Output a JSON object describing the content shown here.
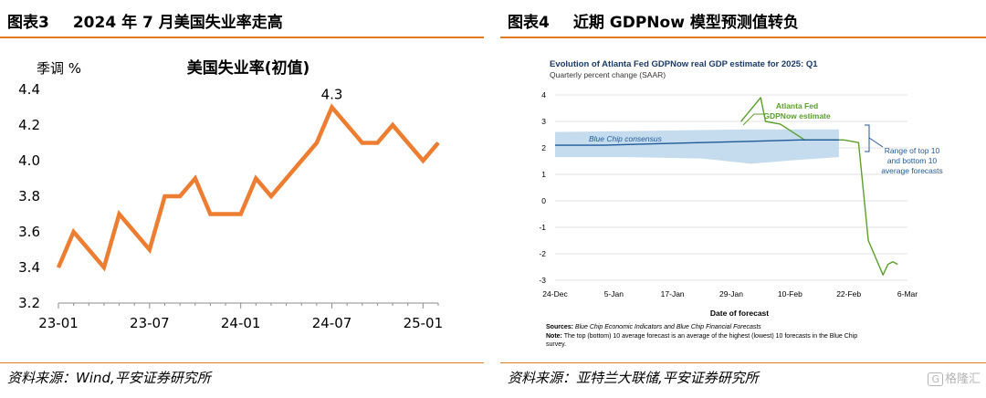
{
  "left": {
    "figure_label": "图表3",
    "figure_title": "2024 年 7 月美国失业率走高",
    "source": "资料来源：Wind,平安证券研究所"
  },
  "right": {
    "figure_label": "图表4",
    "figure_title": "近期 GDPNow 模型预测值转负",
    "source": "资料来源：亚特兰大联储,平安证券研究所"
  },
  "watermark": {
    "box": "G",
    "text": "格隆汇"
  },
  "chart_data": [
    {
      "type": "line",
      "title": "美国失业率(初值)",
      "ylabel": "季调 %",
      "xlabel": "",
      "ylim": [
        3.2,
        4.4
      ],
      "yticks": [
        "3.2",
        "3.4",
        "3.6",
        "3.8",
        "4.0",
        "4.2",
        "4.4"
      ],
      "xticks": [
        "23-01",
        "23-07",
        "24-01",
        "24-07",
        "25-01"
      ],
      "x": [
        "23-01",
        "23-02",
        "23-03",
        "23-04",
        "23-05",
        "23-06",
        "23-07",
        "23-08",
        "23-09",
        "23-10",
        "23-11",
        "23-12",
        "24-01",
        "24-02",
        "24-03",
        "24-04",
        "24-05",
        "24-06",
        "24-07",
        "24-08",
        "24-09",
        "24-10",
        "24-11",
        "24-12",
        "25-01",
        "25-02"
      ],
      "series": [
        {
          "values": [
            3.4,
            3.6,
            3.5,
            3.4,
            3.7,
            3.6,
            3.5,
            3.8,
            3.8,
            3.9,
            3.7,
            3.7,
            3.7,
            3.9,
            3.8,
            3.9,
            4.0,
            4.1,
            4.3,
            4.2,
            4.1,
            4.1,
            4.2,
            4.1,
            4.0,
            4.1
          ],
          "color": "#ed7d31"
        }
      ],
      "annotations": [
        {
          "x": "24-07",
          "text": "4.3"
        }
      ],
      "grid": false,
      "legend": "none"
    },
    {
      "type": "line",
      "title": "Evolution of Atlanta Fed GDPNow real GDP estimate for 2025: Q1",
      "subtitle": "Quarterly percent change (SAAR)",
      "xlabel": "Date of forecast",
      "ylabel": "",
      "ylim": [
        -3,
        4
      ],
      "yticks": [
        "-3",
        "-2",
        "-1",
        "0",
        "1",
        "2",
        "3",
        "4"
      ],
      "xticks": [
        "24-Dec",
        "5-Jan",
        "17-Jan",
        "29-Jan",
        "10-Feb",
        "22-Feb",
        "6-Mar"
      ],
      "x_domain_days": [
        0,
        72
      ],
      "series": [
        {
          "name": "Atlanta Fed GDPNow estimate",
          "color": "#5aa02c",
          "points": [
            [
              38,
              3.0
            ],
            [
              42,
              3.9
            ],
            [
              43,
              3.0
            ],
            [
              46,
              2.9
            ],
            [
              51,
              2.3
            ],
            [
              55,
              2.3
            ],
            [
              57,
              2.3
            ],
            [
              58,
              2.3
            ],
            [
              59,
              2.3
            ],
            [
              62,
              2.2
            ],
            [
              64,
              -1.5
            ],
            [
              67,
              -2.8
            ],
            [
              68,
              -2.4
            ],
            [
              69,
              -2.3
            ],
            [
              70,
              -2.4
            ]
          ]
        },
        {
          "name": "Blue Chip consensus",
          "color": "#1f5a99",
          "points": [
            [
              0,
              2.1
            ],
            [
              10,
              2.1
            ],
            [
              20,
              2.15
            ],
            [
              30,
              2.2
            ],
            [
              40,
              2.25
            ],
            [
              50,
              2.3
            ],
            [
              58,
              2.3
            ]
          ]
        }
      ],
      "band": {
        "name": "Range of top 10 and bottom 10 average forecasts",
        "color": "#c5dcee",
        "upper": [
          [
            0,
            2.6
          ],
          [
            20,
            2.65
          ],
          [
            40,
            2.7
          ],
          [
            58,
            2.7
          ]
        ],
        "lower": [
          [
            0,
            1.65
          ],
          [
            15,
            1.65
          ],
          [
            30,
            1.6
          ],
          [
            40,
            1.4
          ],
          [
            50,
            1.55
          ],
          [
            58,
            1.65
          ]
        ]
      },
      "labels": {
        "gdpnow": [
          "Atlanta Fed",
          "GDPNow estimate"
        ],
        "bluechip": "Blue Chip consensus",
        "range": [
          "Range of top 10",
          "and bottom 10",
          "average forecasts"
        ]
      },
      "notes": {
        "sources_label": "Sources:",
        "sources": "Blue Chip Economic Indicators and Blue Chip Financial Forecasts",
        "note_label": "Note:",
        "note_line1": "The top (bottom) 10 average forecast is an average of the highest (lowest) 10 forecasts in the Blue Chip",
        "note_line2": "survey."
      },
      "grid": true,
      "legend": "inline"
    }
  ]
}
